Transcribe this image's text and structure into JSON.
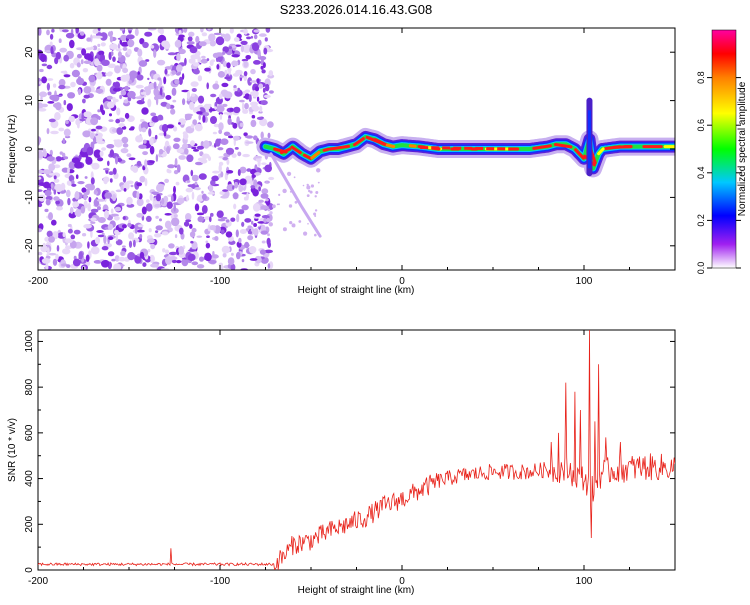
{
  "title": "S233.2026.014.16.43.G08",
  "chart_data": [
    {
      "type": "heatmap",
      "name": "spectrogram",
      "xlabel": "Height of straight line (km)",
      "ylabel": "Frequency (Hz)",
      "xlim": [
        -200,
        150
      ],
      "ylim": [
        -25,
        25
      ],
      "xticks": [
        -200,
        -100,
        0,
        100
      ],
      "yticks": [
        -20,
        -10,
        0,
        10,
        20
      ],
      "noise_region_x": [
        -200,
        -75
      ],
      "signal_region_x": [
        -75,
        150
      ],
      "ridge": {
        "x": [
          -75,
          -70,
          -65,
          -60,
          -55,
          -50,
          -45,
          -40,
          -35,
          -30,
          -25,
          -20,
          -15,
          -10,
          -5,
          0,
          10,
          20,
          30,
          40,
          50,
          60,
          70,
          80,
          85,
          90,
          95,
          100,
          103,
          105,
          108,
          110,
          120,
          130,
          140,
          150
        ],
        "y": [
          0.5,
          0,
          -1,
          0.5,
          -1,
          -2,
          -0.5,
          0,
          0,
          0.5,
          1,
          2.5,
          2,
          1,
          0.5,
          0.8,
          0.5,
          0,
          0,
          0,
          0,
          0,
          0,
          0.5,
          1,
          1,
          0,
          -2,
          2,
          -4,
          -1,
          0,
          0.5,
          0.5,
          0.5,
          0.5
        ]
      },
      "spike": {
        "x": 103,
        "y_range": [
          -5,
          10
        ]
      },
      "colorbar": {
        "label": "Normalized spectral amplitude",
        "ticks": [
          0.0,
          0.2,
          0.4,
          0.6,
          0.8
        ],
        "range": [
          0,
          1
        ],
        "colors": [
          "#ffffff",
          "#a020f0",
          "#0000ff",
          "#00c8ff",
          "#00ff00",
          "#ffff00",
          "#ff8000",
          "#ff0000",
          "#ff00a0"
        ]
      }
    },
    {
      "type": "line",
      "name": "snr",
      "xlabel": "Height of straight line (km)",
      "ylabel": "SNR (10 * v/v)",
      "xlim": [
        -200,
        150
      ],
      "ylim": [
        0,
        1050
      ],
      "xticks": [
        -200,
        -100,
        0,
        100
      ],
      "yticks": [
        0,
        200,
        400,
        600,
        800,
        1000
      ],
      "color": "#e8221a",
      "trend": {
        "x": [
          -200,
          -150,
          -100,
          -80,
          -70,
          -65,
          -60,
          -55,
          -50,
          -40,
          -30,
          -20,
          -10,
          0,
          10,
          20,
          30,
          40,
          50,
          60,
          70,
          80,
          90,
          95,
          100,
          105,
          110,
          120,
          130,
          140,
          150
        ],
        "y": [
          25,
          25,
          25,
          25,
          25,
          60,
          110,
          120,
          130,
          170,
          200,
          230,
          280,
          310,
          350,
          390,
          410,
          420,
          430,
          430,
          430,
          440,
          440,
          420,
          400,
          350,
          430,
          440,
          450,
          450,
          450
        ]
      },
      "spikes": [
        {
          "x": -127,
          "y": 95
        },
        {
          "x": 82,
          "y": 560
        },
        {
          "x": 86,
          "y": 600
        },
        {
          "x": 90,
          "y": 820
        },
        {
          "x": 95,
          "y": 780
        },
        {
          "x": 98,
          "y": 700
        },
        {
          "x": 103,
          "y": 1050
        },
        {
          "x": 104,
          "y": 140
        },
        {
          "x": 106,
          "y": 650
        },
        {
          "x": 108,
          "y": 900
        },
        {
          "x": 112,
          "y": 580
        },
        {
          "x": 120,
          "y": 560
        }
      ]
    }
  ]
}
